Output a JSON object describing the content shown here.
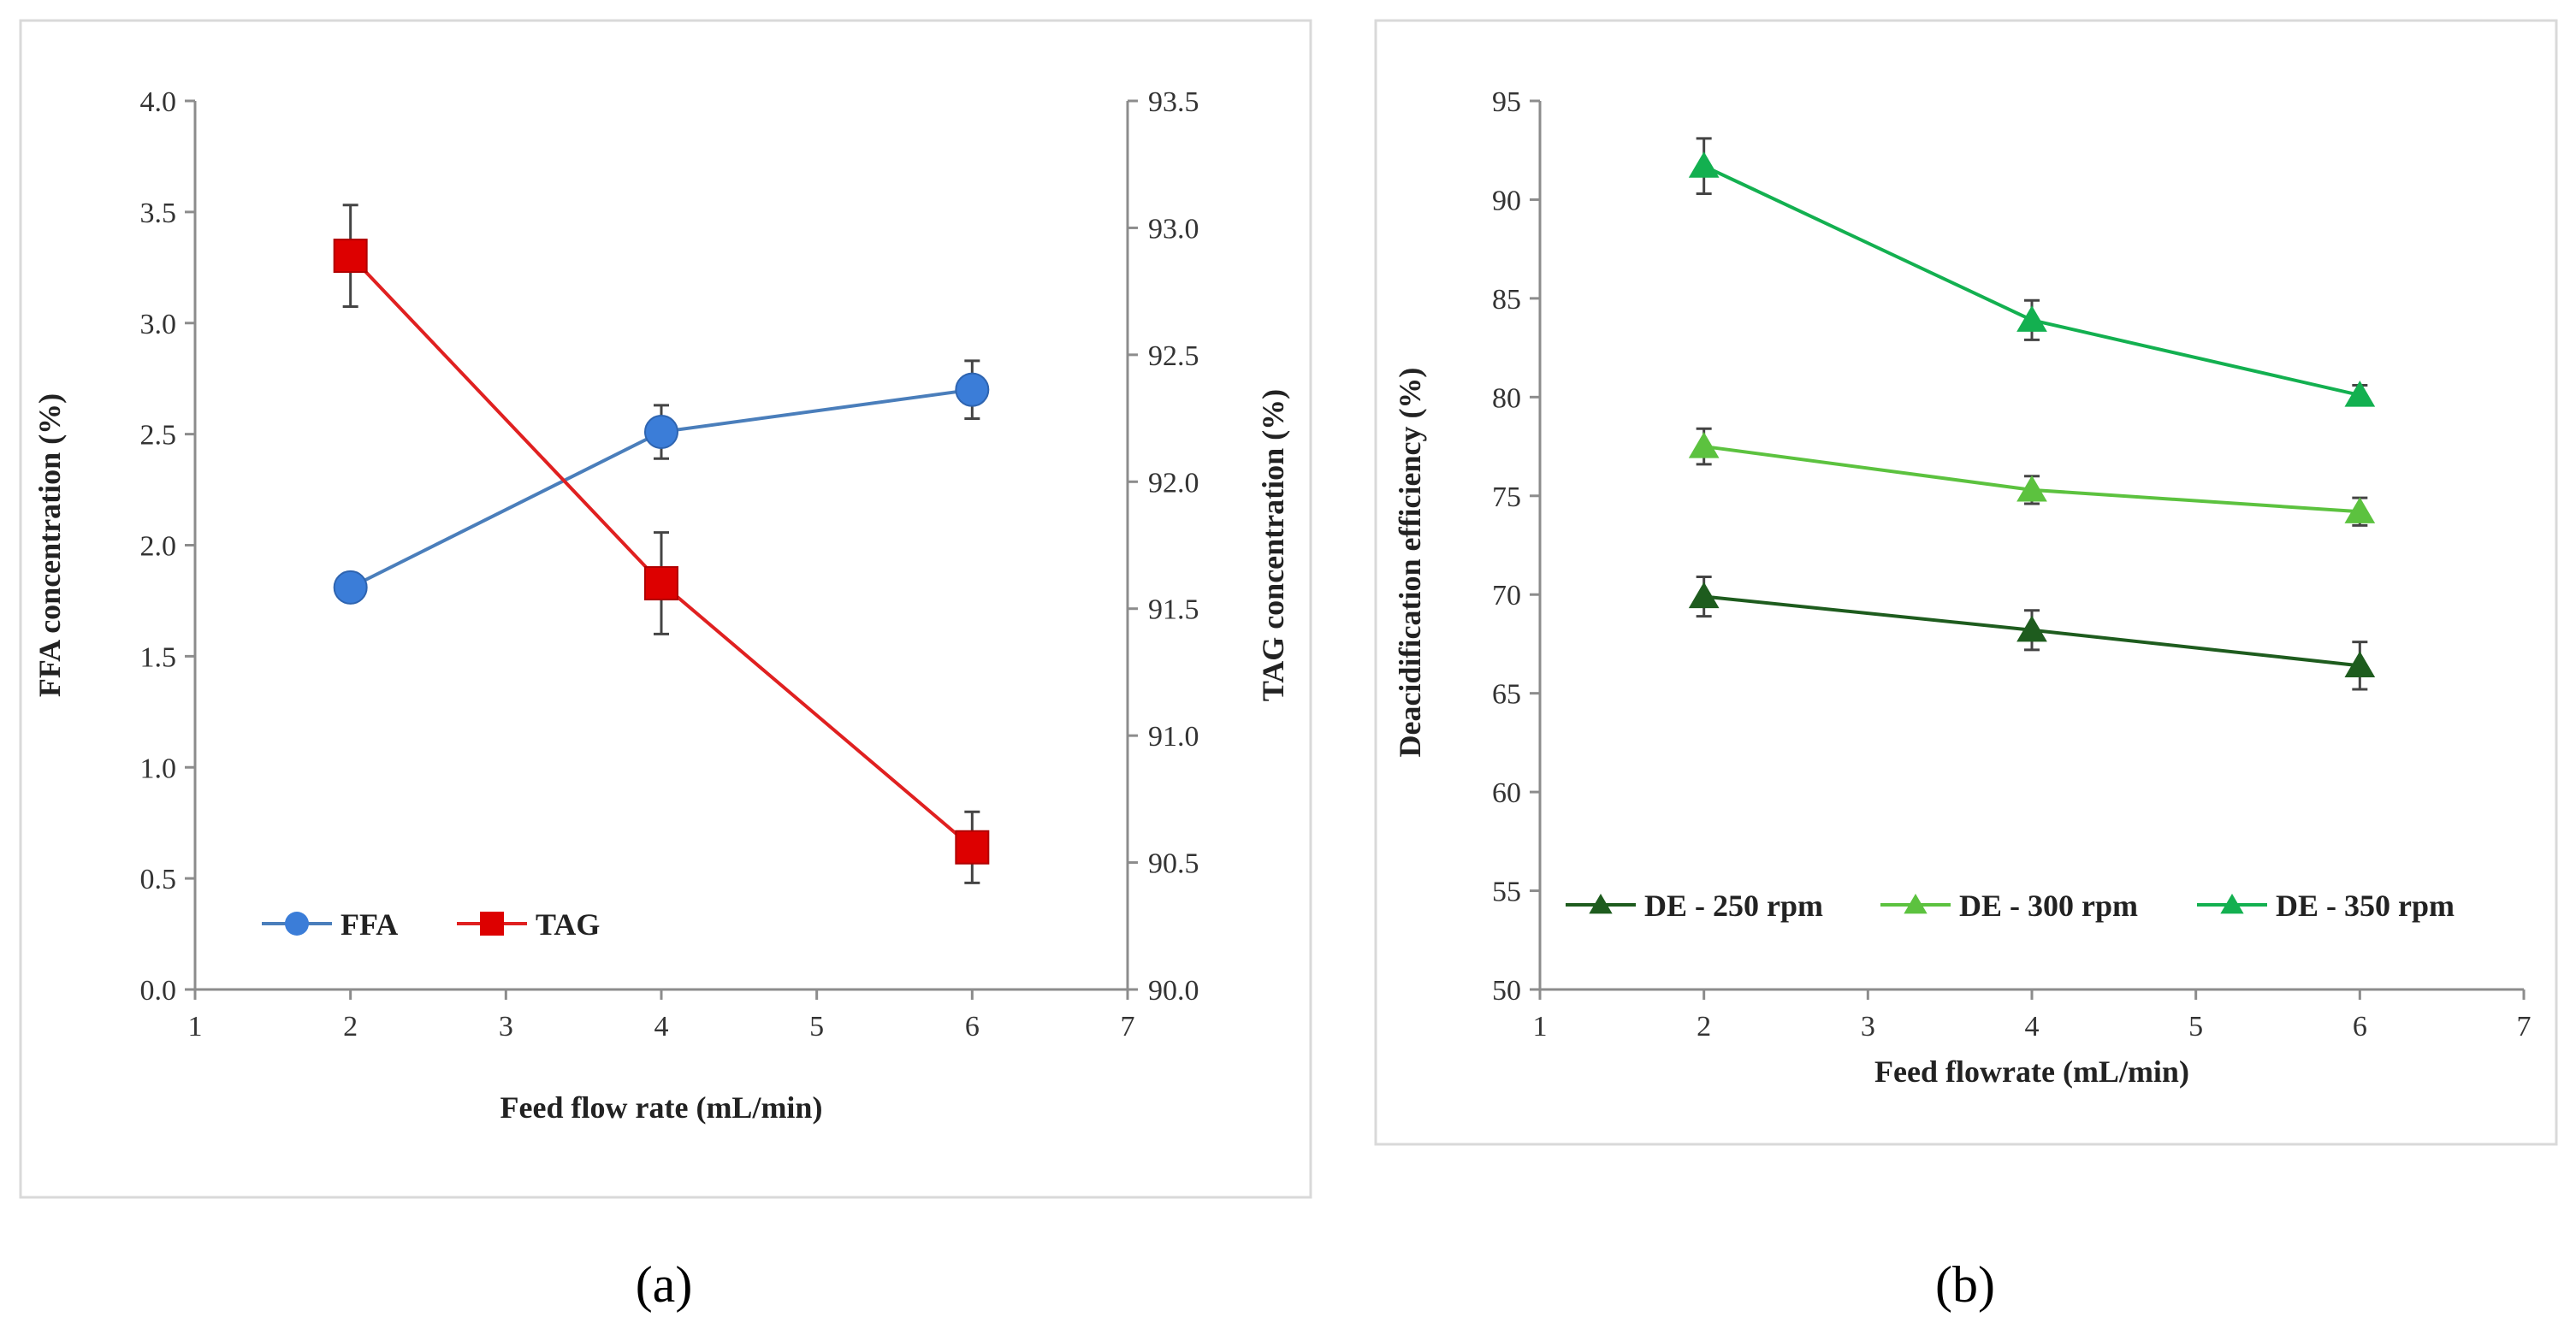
{
  "chart_data": [
    {
      "type": "line",
      "panel_label": "(a)",
      "x": [
        2,
        4,
        6
      ],
      "xlim": [
        1,
        7
      ],
      "x_ticks": [
        "1",
        "2",
        "3",
        "4",
        "5",
        "6",
        "7"
      ],
      "xlabel": "Feed flow rate (mL/min)",
      "ylabel_left": "FFA concentration (%)",
      "ylim_left": [
        0,
        4.0
      ],
      "y_ticks_left": [
        "0.0",
        "0.5",
        "1.0",
        "1.5",
        "2.0",
        "2.5",
        "3.0",
        "3.5",
        "4.0"
      ],
      "ylabel_right": "TAG concentration (%)",
      "ylim_right": [
        90.0,
        93.5
      ],
      "y_ticks_right": [
        "90.0",
        "90.5",
        "91.0",
        "91.5",
        "92.0",
        "92.5",
        "93.0",
        "93.5"
      ],
      "grid": false,
      "legend_position": "bottom-left",
      "series": [
        {
          "name": "FFA",
          "axis": "left",
          "color": "#4a7ebb",
          "marker_color": "#3b7dd8",
          "marker": "circle",
          "values": [
            1.81,
            2.51,
            2.7
          ],
          "errors": [
            0.02,
            0.12,
            0.13
          ]
        },
        {
          "name": "TAG",
          "axis": "right",
          "color": "#e02020",
          "marker_color": "#dd0000",
          "marker": "square",
          "values": [
            92.89,
            91.6,
            90.56
          ],
          "errors": [
            0.2,
            0.2,
            0.14
          ]
        }
      ]
    },
    {
      "type": "line",
      "panel_label": "(b)",
      "x": [
        2,
        4,
        6
      ],
      "xlim": [
        1,
        7
      ],
      "x_ticks": [
        "1",
        "2",
        "3",
        "4",
        "5",
        "6",
        "7"
      ],
      "xlabel": "Feed flowrate (mL/min)",
      "ylabel": "Deacidification efficiency (%)",
      "ylim": [
        50,
        95
      ],
      "y_ticks": [
        "50",
        "55",
        "60",
        "65",
        "70",
        "75",
        "80",
        "85",
        "90",
        "95"
      ],
      "grid": false,
      "legend_position": "bottom",
      "series": [
        {
          "name": "DE - 250 rpm",
          "color": "#1e5c1e",
          "marker": "triangle",
          "values": [
            69.9,
            68.2,
            66.4
          ],
          "errors": [
            1.0,
            1.0,
            1.2
          ]
        },
        {
          "name": "DE - 300 rpm",
          "color": "#5cc23f",
          "marker": "triangle",
          "values": [
            77.5,
            75.3,
            74.2
          ],
          "errors": [
            0.9,
            0.7,
            0.7
          ]
        },
        {
          "name": "DE - 350 rpm",
          "color": "#13b050",
          "marker": "triangle",
          "values": [
            91.7,
            83.9,
            80.1
          ],
          "errors": [
            1.4,
            1.0,
            0.5
          ]
        }
      ]
    }
  ]
}
